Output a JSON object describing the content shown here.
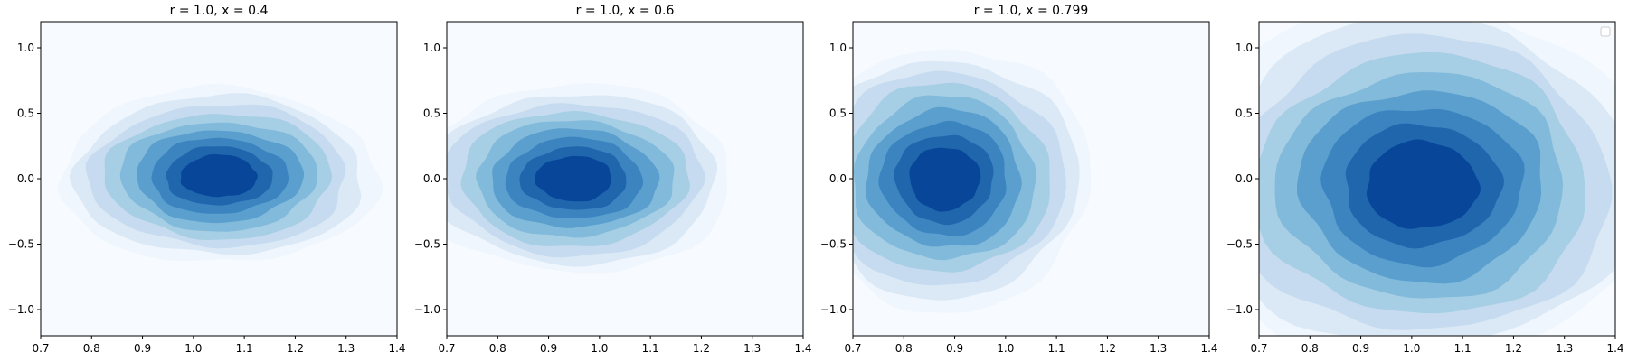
{
  "chart_data": [
    {
      "type": "heatmap",
      "title": "r = 1.0, x = 0.4",
      "xlim": [
        0.7,
        1.4
      ],
      "ylim": [
        -1.2,
        1.2
      ],
      "xticks": [
        "0.7",
        "0.8",
        "0.9",
        "1.0",
        "1.1",
        "1.2",
        "1.3",
        "1.4"
      ],
      "yticks": [
        "−1.0",
        "−0.5",
        "0.0",
        "0.5",
        "1.0"
      ],
      "density_center": [
        1.05,
        0.02
      ],
      "density_spread": [
        0.13,
        0.28
      ],
      "legend": false
    },
    {
      "type": "heatmap",
      "title": "r = 1.0, x = 0.6",
      "xlim": [
        0.7,
        1.4
      ],
      "ylim": [
        -1.2,
        1.2
      ],
      "xticks": [
        "0.7",
        "0.8",
        "0.9",
        "1.0",
        "1.1",
        "1.2",
        "1.3",
        "1.4"
      ],
      "yticks": [
        "−1.0",
        "−0.5",
        "0.0",
        "0.5",
        "1.0"
      ],
      "density_center": [
        0.95,
        0.0
      ],
      "density_spread": [
        0.13,
        0.3
      ],
      "legend": false
    },
    {
      "type": "heatmap",
      "title": "r = 1.0, x = 0.799",
      "xlim": [
        0.7,
        1.4
      ],
      "ylim": [
        -1.2,
        1.2
      ],
      "xticks": [
        "0.7",
        "0.8",
        "0.9",
        "1.0",
        "1.1",
        "1.2",
        "1.3",
        "1.4"
      ],
      "yticks": [
        "−1.0",
        "−0.5",
        "0.0",
        "0.5",
        "1.0"
      ],
      "density_center": [
        0.88,
        0.0
      ],
      "density_spread": [
        0.12,
        0.42
      ],
      "legend": false
    },
    {
      "type": "heatmap",
      "title": "",
      "xlim": [
        0.7,
        1.4
      ],
      "ylim": [
        -1.2,
        1.2
      ],
      "xticks": [
        "0.7",
        "0.8",
        "0.9",
        "1.0",
        "1.1",
        "1.2",
        "1.3",
        "1.4"
      ],
      "yticks": [
        "−1.0",
        "−0.5",
        "0.0",
        "0.5",
        "1.0"
      ],
      "density_center": [
        1.02,
        -0.05
      ],
      "density_spread": [
        0.19,
        0.58
      ],
      "legend": true
    }
  ],
  "colors": {
    "levels": [
      "#f7fbff",
      "#eff6fd",
      "#dbe9f6",
      "#c6dbef",
      "#a6cee4",
      "#82badb",
      "#5a9fcd",
      "#3b84c0",
      "#1f66ad",
      "#08469a"
    ]
  }
}
